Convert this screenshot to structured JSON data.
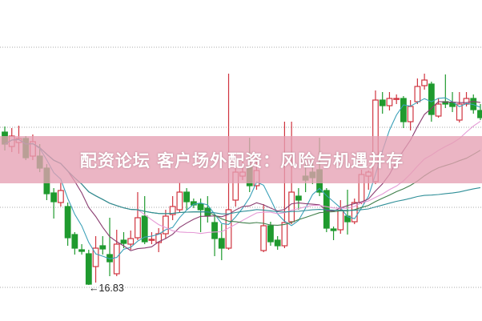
{
  "banner": {
    "text": "配资论坛 客户场外配资：风险与机遇并存"
  },
  "chart_data": {
    "type": "candlestick",
    "title": "",
    "xlabel": "",
    "ylabel": "",
    "ylim": [
      16.38,
      20.39
    ],
    "gridlines": [
      16.8,
      17.8,
      18.8,
      19.8
    ],
    "grid": true,
    "annotation": {
      "text": "16.83",
      "arrow": "←",
      "value": 16.83
    },
    "colors": {
      "up": "#d0343f",
      "down": "#1f9a2e",
      "grid": "#a8a8a8"
    },
    "moving_averages": [
      {
        "period": 5,
        "color": "#3aa0b8"
      },
      {
        "period": 10,
        "color": "#8a3c70"
      },
      {
        "period": 20,
        "color": "#e59ad6"
      },
      {
        "period": 30,
        "color": "#3f7f4a"
      },
      {
        "period": 60,
        "color": "#2f8f98"
      }
    ],
    "ohlc": [
      [
        18.74,
        18.81,
        18.51,
        18.59
      ],
      [
        18.56,
        18.79,
        18.49,
        18.69
      ],
      [
        18.61,
        18.82,
        18.47,
        18.66
      ],
      [
        18.66,
        18.69,
        18.39,
        18.42
      ],
      [
        18.44,
        18.71,
        18.39,
        18.62
      ],
      [
        18.44,
        18.59,
        18.24,
        18.29
      ],
      [
        18.29,
        18.34,
        17.89,
        17.97
      ],
      [
        17.98,
        18.04,
        17.66,
        17.87
      ],
      [
        17.86,
        18.11,
        17.81,
        18.01
      ],
      [
        17.81,
        17.86,
        17.32,
        17.42
      ],
      [
        17.46,
        17.49,
        17.21,
        17.29
      ],
      [
        17.27,
        17.34,
        17.21,
        17.25
      ],
      [
        17.22,
        17.27,
        16.83,
        16.84
      ],
      [
        17.06,
        17.44,
        16.86,
        17.29
      ],
      [
        17.32,
        17.44,
        17.21,
        17.28
      ],
      [
        17.21,
        17.67,
        16.94,
        17.12
      ],
      [
        16.97,
        17.52,
        16.94,
        17.34
      ],
      [
        17.39,
        17.49,
        17.29,
        17.35
      ],
      [
        17.34,
        17.51,
        17.27,
        17.41
      ],
      [
        17.42,
        17.99,
        17.39,
        17.67
      ],
      [
        17.69,
        17.94,
        17.34,
        17.37
      ],
      [
        17.39,
        17.49,
        17.34,
        17.4
      ],
      [
        17.36,
        17.54,
        17.24,
        17.47
      ],
      [
        17.47,
        17.77,
        17.41,
        17.69
      ],
      [
        17.71,
        17.94,
        17.64,
        17.81
      ],
      [
        17.77,
        18.11,
        17.74,
        17.99
      ],
      [
        17.99,
        18.04,
        17.77,
        17.87
      ],
      [
        17.87,
        17.91,
        17.79,
        17.83
      ],
      [
        17.84,
        17.91,
        17.49,
        17.77
      ],
      [
        17.79,
        17.94,
        17.61,
        17.69
      ],
      [
        17.61,
        17.69,
        17.19,
        17.41
      ],
      [
        17.41,
        17.59,
        17.14,
        17.29
      ],
      [
        17.29,
        19.47,
        17.27,
        17.77
      ],
      [
        17.89,
        18.39,
        17.81,
        18.24
      ],
      [
        18.19,
        18.49,
        18.14,
        18.24
      ],
      [
        18.31,
        18.67,
        17.99,
        18.07
      ],
      [
        18.07,
        18.41,
        18.02,
        18.26
      ],
      [
        17.26,
        17.84,
        17.24,
        17.57
      ],
      [
        17.57,
        17.62,
        17.32,
        17.37
      ],
      [
        17.39,
        17.44,
        17.27,
        17.32
      ],
      [
        17.32,
        18.87,
        17.29,
        17.61
      ],
      [
        17.62,
        18.87,
        17.59,
        17.99
      ],
      [
        17.94,
        18.04,
        17.77,
        17.89
      ],
      [
        18.19,
        18.34,
        17.99,
        18.14
      ],
      [
        18.24,
        18.39,
        18.09,
        18.17
      ],
      [
        18.27,
        18.67,
        17.94,
        17.99
      ],
      [
        18.01,
        18.04,
        17.49,
        17.54
      ],
      [
        17.53,
        17.56,
        17.39,
        17.51
      ],
      [
        17.52,
        17.89,
        17.47,
        17.76
      ],
      [
        17.69,
        18.02,
        17.46,
        17.62
      ],
      [
        17.62,
        17.91,
        17.59,
        17.86
      ],
      [
        17.86,
        18.27,
        17.84,
        18.21
      ],
      [
        18.19,
        18.26,
        18.02,
        18.24
      ],
      [
        18.12,
        19.26,
        18.09,
        19.14
      ],
      [
        19.14,
        19.24,
        18.97,
        19.07
      ],
      [
        19.07,
        19.24,
        19.01,
        19.16
      ],
      [
        19.15,
        19.21,
        19.09,
        19.16
      ],
      [
        19.16,
        19.19,
        18.79,
        18.87
      ],
      [
        18.87,
        19.14,
        18.76,
        19.06
      ],
      [
        19.12,
        19.41,
        19.09,
        19.31
      ],
      [
        19.32,
        19.47,
        19.27,
        19.39
      ],
      [
        19.34,
        19.37,
        18.87,
        18.96
      ],
      [
        18.94,
        19.16,
        18.92,
        19.09
      ],
      [
        19.12,
        19.46,
        19.04,
        19.09
      ],
      [
        19.11,
        19.24,
        18.99,
        19.06
      ],
      [
        18.89,
        19.24,
        18.86,
        19.09
      ],
      [
        19.09,
        19.24,
        19.06,
        19.16
      ],
      [
        19.16,
        19.21,
        18.97,
        19.02
      ],
      [
        19.01,
        19.09,
        18.89,
        18.92
      ]
    ]
  }
}
